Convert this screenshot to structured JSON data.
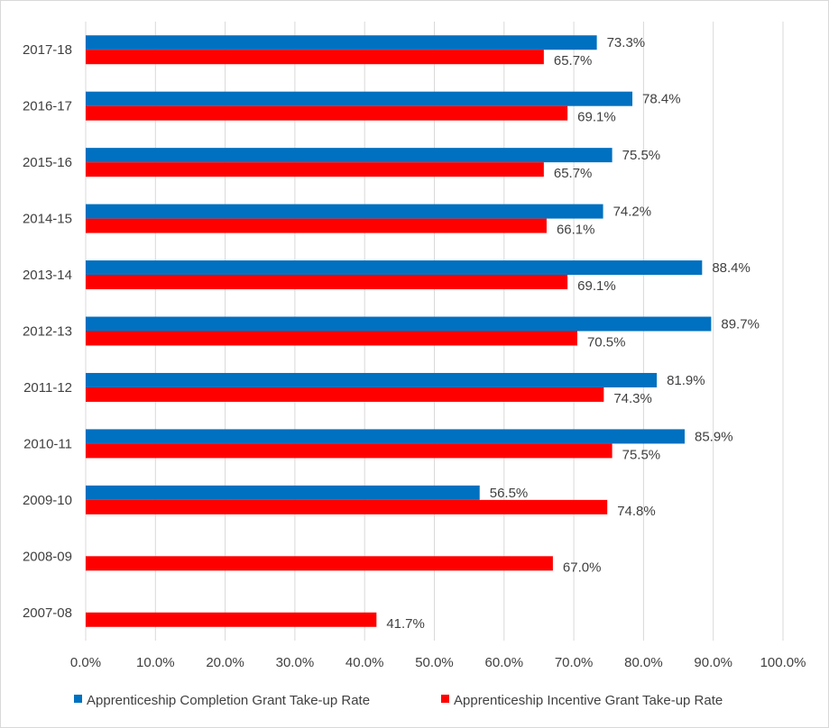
{
  "chart_data": {
    "type": "bar",
    "orientation": "horizontal",
    "categories": [
      "2017-18",
      "2016-17",
      "2015-16",
      "2014-15",
      "2013-14",
      "2012-13",
      "2011-12",
      "2010-11",
      "2009-10",
      "2008-09",
      "2007-08"
    ],
    "series": [
      {
        "name": "Apprenticeship Completion Grant Take-up Rate",
        "color": "#0070C0",
        "values": [
          73.3,
          78.4,
          75.5,
          74.2,
          88.4,
          89.7,
          81.9,
          85.9,
          56.5,
          null,
          null
        ],
        "labels": [
          "73.3%",
          "78.4%",
          "75.5%",
          "74.2%",
          "88.4%",
          "89.7%",
          "81.9%",
          "85.9%",
          "56.5%",
          null,
          null
        ]
      },
      {
        "name": "Apprenticeship Incentive Grant Take-up Rate",
        "color": "#FF0000",
        "values": [
          65.7,
          69.1,
          65.7,
          66.1,
          69.1,
          70.5,
          74.3,
          75.5,
          74.8,
          67.0,
          41.7
        ],
        "labels": [
          "65.7%",
          "69.1%",
          "65.7%",
          "66.1%",
          "69.1%",
          "70.5%",
          "74.3%",
          "75.5%",
          "74.8%",
          "67.0%",
          "41.7%"
        ]
      }
    ],
    "xlim": [
      0,
      100
    ],
    "xticks": [
      "0.0%",
      "10.0%",
      "20.0%",
      "30.0%",
      "40.0%",
      "50.0%",
      "60.0%",
      "70.0%",
      "80.0%",
      "90.0%",
      "100.0%"
    ],
    "grid": true,
    "legend": "bottom",
    "title": "",
    "xlabel": "",
    "ylabel": ""
  }
}
